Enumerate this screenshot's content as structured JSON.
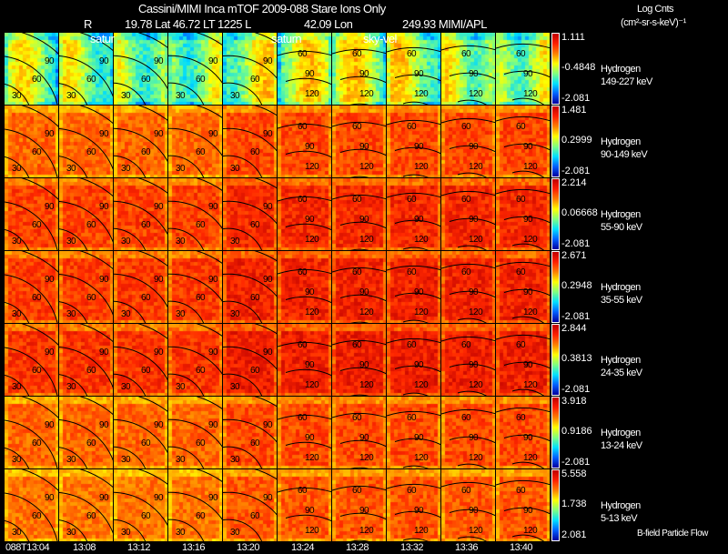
{
  "header": {
    "title": "Cassini/MIMI Inca mTOF  2009-088   Stare   Ions Only",
    "r_label": "R",
    "lat_label": "19.78 Lat 46.72 LT 1225 L",
    "lon_label": "42.09 Lon",
    "apl_label": "249.93  MIMI/APL",
    "units_line1": "Log Cnts",
    "units_line2": "(cm²-sr-s-keV)⁻¹",
    "overlay_labels": [
      "satur",
      "saturn",
      "sky-vel"
    ]
  },
  "chart_data": {
    "type": "heatmap",
    "title": "Cassini/MIMI Inca mTOF 2009-088 Stare Ions Only",
    "times": [
      "088T13:04",
      "13:08",
      "13:12",
      "13:16",
      "13:20",
      "13:24",
      "13:28",
      "13:32",
      "13:36",
      "13:40"
    ],
    "contour_labels": [
      "30",
      "60",
      "90",
      "120"
    ],
    "rows": [
      {
        "species": "Hydrogen",
        "energy": "149-227 keV",
        "max": "1.111",
        "mid": "-0.4848",
        "min": "-2.081",
        "level": 0.55
      },
      {
        "species": "Hydrogen",
        "energy": "90-149 keV",
        "max": "1.481",
        "mid": "0.2999",
        "min": "-2.081",
        "level": 0.8
      },
      {
        "species": "Hydrogen",
        "energy": "55-90 keV",
        "max": "2.214",
        "mid": "0.06668",
        "min": "-2.081",
        "level": 0.85
      },
      {
        "species": "Hydrogen",
        "energy": "35-55 keV",
        "max": "2.671",
        "mid": "0.2948",
        "min": "-2.081",
        "level": 0.86
      },
      {
        "species": "Hydrogen",
        "energy": "24-35 keV",
        "max": "2.844",
        "mid": "0.3813",
        "min": "-2.081",
        "level": 0.87
      },
      {
        "species": "Hydrogen",
        "energy": "13-24 keV",
        "max": "3.918",
        "mid": "0.9186",
        "min": "-2.081",
        "level": 0.8
      },
      {
        "species": "Hydrogen",
        "energy": "5-13 keV",
        "max": "5.558",
        "mid": "1.738",
        "min": "2.081",
        "level": 0.78
      }
    ]
  },
  "footer": {
    "legend": "B-field Particle Flow"
  }
}
